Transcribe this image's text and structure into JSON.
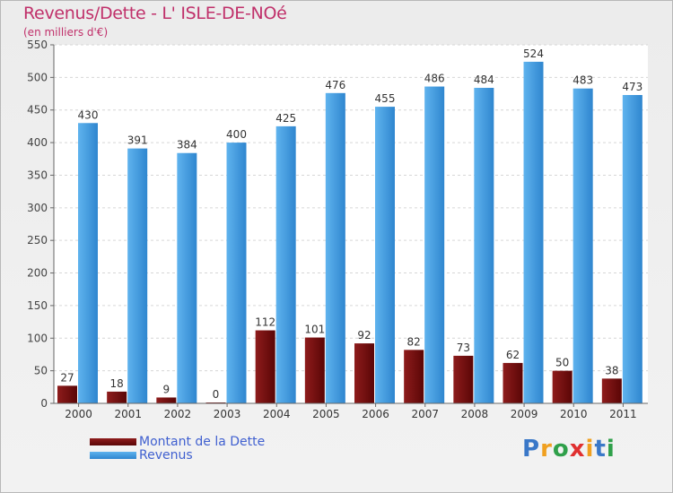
{
  "header": {
    "title": "Revenus/Dette - L' ISLE-DE-NOé",
    "subtitle": "(en milliers d'€)"
  },
  "chart_data": {
    "type": "bar",
    "title": "Revenus/Dette - L' ISLE-DE-NOé",
    "subtitle": "(en milliers d'€)",
    "categories": [
      "2000",
      "2001",
      "2002",
      "2003",
      "2004",
      "2005",
      "2006",
      "2007",
      "2008",
      "2009",
      "2010",
      "2011"
    ],
    "series": [
      {
        "name": "Montant de la Dette",
        "color": "#7a0a0a",
        "values": [
          27,
          18,
          9,
          0,
          112,
          101,
          92,
          82,
          73,
          62,
          50,
          38
        ]
      },
      {
        "name": "Revenus",
        "color": "#3f9de0",
        "values": [
          430,
          391,
          384,
          400,
          425,
          476,
          455,
          486,
          484,
          524,
          483,
          473
        ]
      }
    ],
    "ylim": [
      0,
      550
    ],
    "yticks": [
      0,
      50,
      100,
      150,
      200,
      250,
      300,
      350,
      400,
      450,
      500,
      550
    ],
    "grid": true,
    "legend_position": "bottom-left"
  },
  "logo": {
    "letters": [
      "P",
      "r",
      "o",
      "x",
      "i",
      "t",
      "i"
    ],
    "colors": [
      "#3a78c8",
      "#f0a020",
      "#2fa04a",
      "#e03030",
      "#f0a020",
      "#3a78c8",
      "#2fa04a"
    ]
  }
}
